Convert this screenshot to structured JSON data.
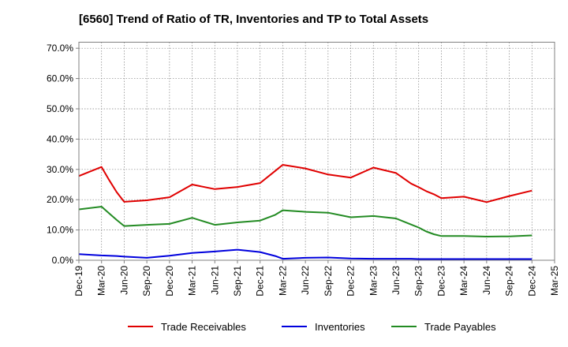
{
  "chart_data": {
    "type": "line",
    "title": "[6560]  Trend of Ratio of TR, Inventories and TP to Total Assets",
    "xlabel": "",
    "ylabel": "",
    "ylim": [
      0,
      0.72
    ],
    "y_ticks": [
      0.0,
      0.1,
      0.2,
      0.3,
      0.4,
      0.5,
      0.6,
      0.7
    ],
    "y_tick_labels": [
      "0.0%",
      "10.0%",
      "20.0%",
      "30.0%",
      "40.0%",
      "50.0%",
      "60.0%",
      "70.0%"
    ],
    "x_tick_labels": [
      "Dec-19",
      "Mar-20",
      "Jun-20",
      "Sep-20",
      "Dec-20",
      "Mar-21",
      "Jun-21",
      "Sep-21",
      "Dec-21",
      "Mar-22",
      "Jun-22",
      "Sep-22",
      "Dec-22",
      "Mar-23",
      "Jun-23",
      "Sep-23",
      "Dec-23",
      "Mar-24",
      "Jun-24",
      "Sep-24",
      "Dec-24",
      "Mar-25"
    ],
    "grid": true,
    "legend_position": "bottom",
    "x": [
      "Dec-19",
      "Mar-20",
      "Apr-20",
      "May-20",
      "Jun-20",
      "Sep-20",
      "Dec-20",
      "Mar-21",
      "Jun-21",
      "Sep-21",
      "Dec-21",
      "Feb-22",
      "Mar-22",
      "Jun-22",
      "Sep-22",
      "Dec-22",
      "Mar-23",
      "Jun-23",
      "Aug-23",
      "Sep-23",
      "Oct-23",
      "Nov-23",
      "Dec-23",
      "Mar-24",
      "Jun-24",
      "Sep-24",
      "Dec-24"
    ],
    "series": [
      {
        "name": "Trade Receivables",
        "color": "#e00000",
        "values": [
          0.278,
          0.308,
          0.265,
          0.225,
          0.193,
          0.198,
          0.208,
          0.25,
          0.235,
          0.242,
          0.255,
          0.295,
          0.315,
          0.303,
          0.283,
          0.273,
          0.306,
          0.288,
          0.253,
          0.241,
          0.228,
          0.218,
          0.205,
          0.21,
          0.192,
          0.212,
          0.23
        ]
      },
      {
        "name": "Inventories",
        "color": "#0000dd",
        "values": [
          0.02,
          0.016,
          0.015,
          0.014,
          0.012,
          0.008,
          0.015,
          0.024,
          0.029,
          0.035,
          0.027,
          0.014,
          0.005,
          0.008,
          0.009,
          0.006,
          0.005,
          0.005,
          0.005,
          0.004,
          0.004,
          0.004,
          0.004,
          0.004,
          0.004,
          0.004,
          0.004
        ]
      },
      {
        "name": "Trade Payables",
        "color": "#238b23",
        "values": [
          0.168,
          0.177,
          0.155,
          0.133,
          0.113,
          0.117,
          0.12,
          0.14,
          0.117,
          0.125,
          0.131,
          0.15,
          0.165,
          0.16,
          0.157,
          0.142,
          0.146,
          0.138,
          0.118,
          0.108,
          0.095,
          0.086,
          0.08,
          0.08,
          0.078,
          0.079,
          0.082
        ]
      }
    ]
  }
}
